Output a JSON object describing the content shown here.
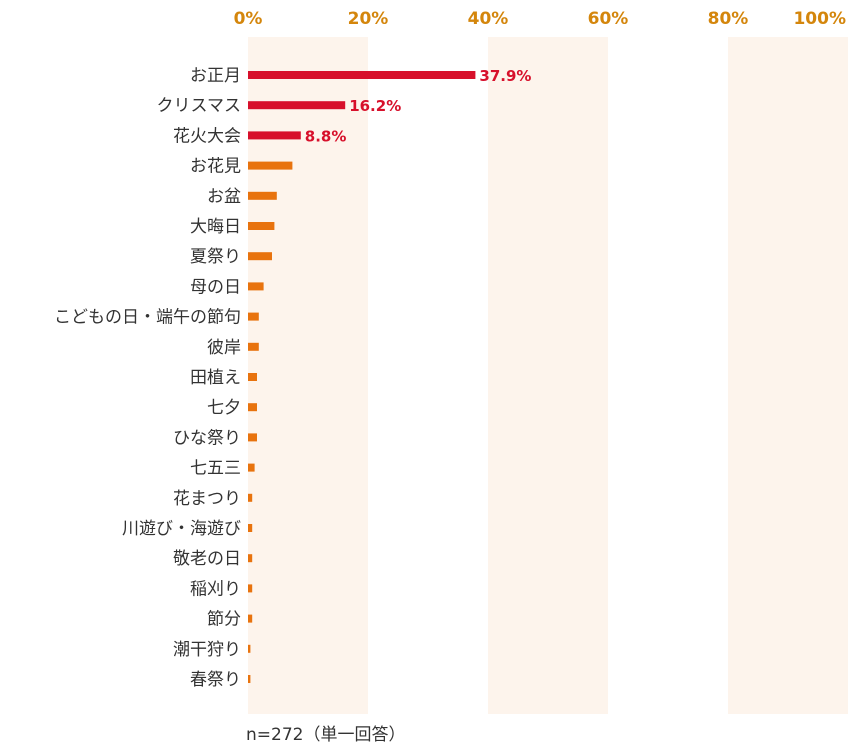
{
  "chart_data": {
    "type": "bar",
    "orientation": "horizontal",
    "categories": [
      "お正月",
      "クリスマス",
      "花火大会",
      "お花見",
      "お盆",
      "大晦日",
      "夏祭り",
      "母の日",
      "こどもの日・端午の節句",
      "彼岸",
      "田植え",
      "七夕",
      "ひな祭り",
      "七五三",
      "花まつり",
      "川遊び・海遊び",
      "敬老の日",
      "稲刈り",
      "節分",
      "潮干狩り",
      "春祭り"
    ],
    "values": [
      37.9,
      16.2,
      8.8,
      7.4,
      4.8,
      4.4,
      4.0,
      2.6,
      1.8,
      1.8,
      1.5,
      1.5,
      1.5,
      1.1,
      0.7,
      0.7,
      0.7,
      0.7,
      0.7,
      0.4,
      0.4
    ],
    "data_labels": [
      "37.9%",
      "16.2%",
      "8.8%",
      "",
      "",
      "",
      "",
      "",
      "",
      "",
      "",
      "",
      "",
      "",
      "",
      "",
      "",
      "",
      "",
      "",
      ""
    ],
    "highlight_count": 3,
    "xlim": [
      0,
      100
    ],
    "x_ticks": [
      "0%",
      "20%",
      "40%",
      "60%",
      "80%",
      "100%"
    ],
    "note": "n=272（単一回答）",
    "grid": "alternating bands",
    "colors": {
      "highlight": "#d7102b",
      "other": "#e8730e",
      "tick": "#d4860c",
      "band": "#fdf4ec",
      "text": "#333333"
    }
  }
}
